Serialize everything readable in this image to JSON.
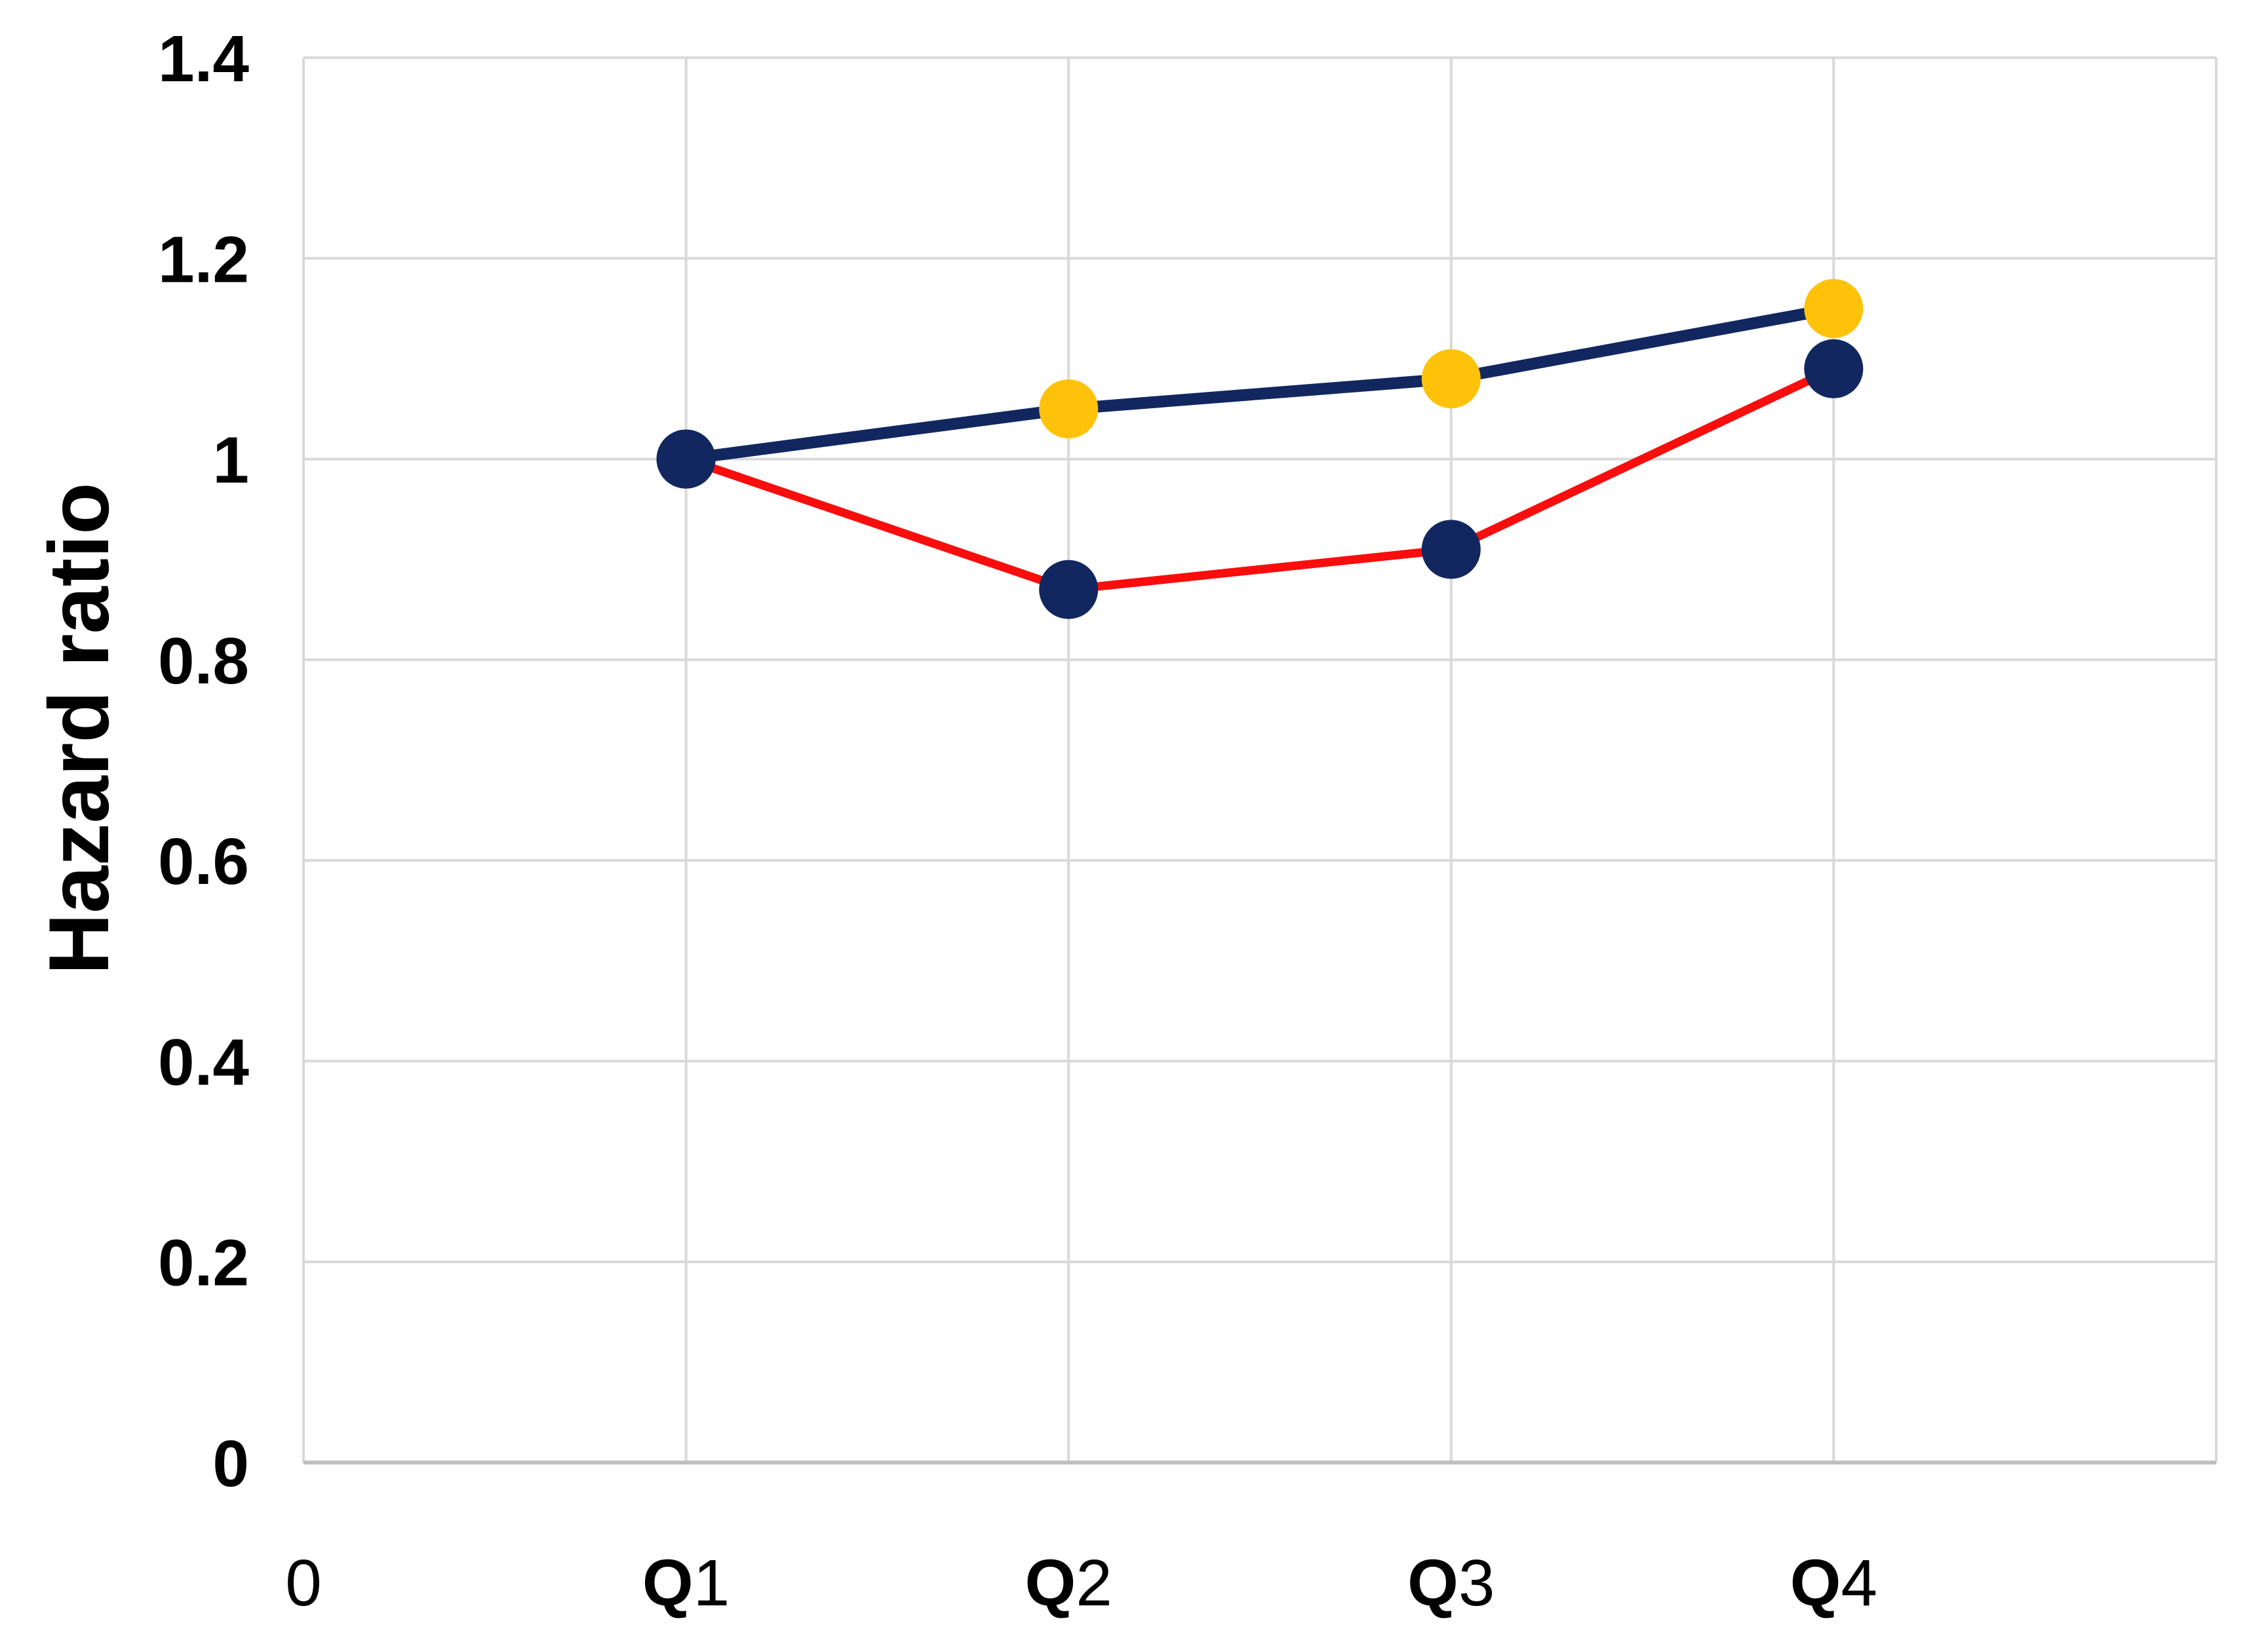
{
  "chart_data": {
    "type": "line",
    "title": "",
    "xlabel": "",
    "ylabel": "Hazard ratio",
    "ylim": [
      0,
      1.4
    ],
    "ytick_values": [
      0,
      0.2,
      0.4,
      0.6,
      0.8,
      1,
      1.2,
      1.4
    ],
    "ytick_labels": [
      "0",
      "0.2",
      "0.4",
      "0.6",
      "0.8",
      "1",
      "1.2",
      "1.4"
    ],
    "x_axis_labels": [
      "0",
      "Q1",
      "Q2",
      "Q3",
      "Q4"
    ],
    "categories": [
      "Q1",
      "Q2",
      "Q3",
      "Q4"
    ],
    "series": [
      {
        "id": "upper-navy-line",
        "name": "",
        "values": [
          1.0,
          1.05,
          1.08,
          1.15
        ],
        "line_color": "#122760",
        "line_width": 18,
        "marker_colors": [
          "#122760",
          "#FFC20A",
          "#FFC20A",
          "#FFC20A"
        ]
      },
      {
        "id": "lower-red-line",
        "name": "",
        "values": [
          1.0,
          0.87,
          0.91,
          1.09
        ],
        "line_color": "#FA0D0D",
        "line_width": 13,
        "marker_colors": [
          "#122760",
          "#122760",
          "#122760",
          "#122760"
        ]
      }
    ],
    "marker_radius": 45,
    "grid": true,
    "legend": "none",
    "colors": {
      "gridline": "#D9D9D9",
      "plot_border": "#D9D9D9",
      "bottom_axis": "#BFBFBF",
      "text": "#000000",
      "background": "#FFFFFF"
    }
  }
}
